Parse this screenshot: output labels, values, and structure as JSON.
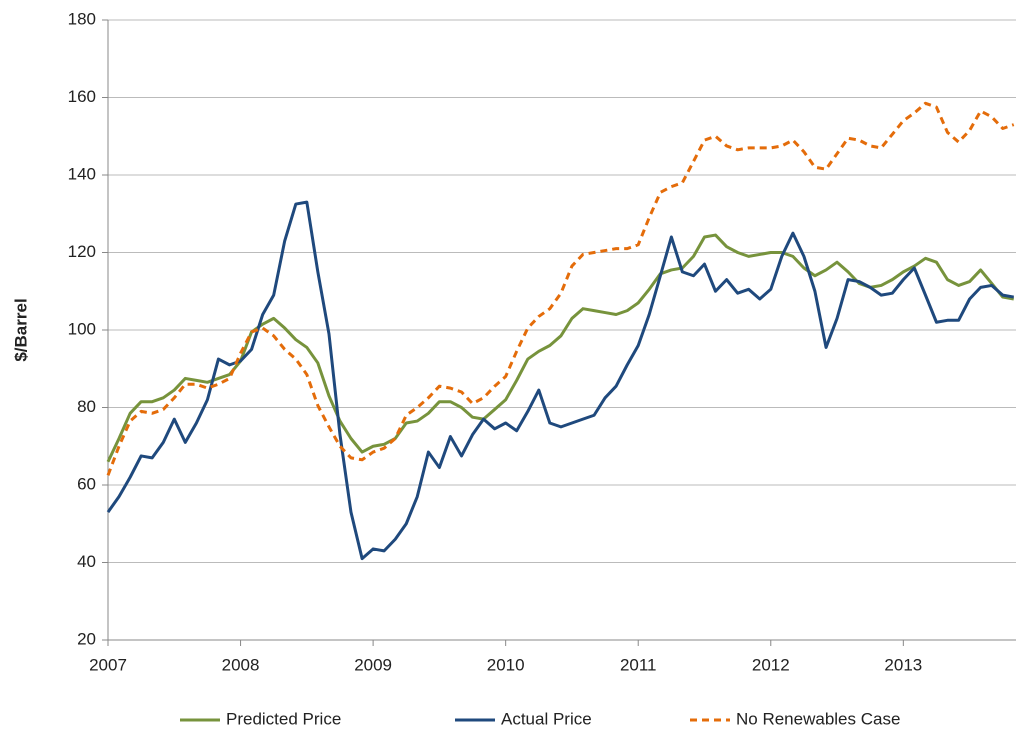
{
  "chart_data": {
    "type": "line",
    "y_label": "$/Barrel",
    "x": [
      2007.0,
      2007.083,
      2007.167,
      2007.25,
      2007.333,
      2007.417,
      2007.5,
      2007.583,
      2007.667,
      2007.75,
      2007.833,
      2007.917,
      2008.0,
      2008.083,
      2008.167,
      2008.25,
      2008.333,
      2008.417,
      2008.5,
      2008.583,
      2008.667,
      2008.75,
      2008.833,
      2008.917,
      2009.0,
      2009.083,
      2009.167,
      2009.25,
      2009.333,
      2009.417,
      2009.5,
      2009.583,
      2009.667,
      2009.75,
      2009.833,
      2009.917,
      2010.0,
      2010.083,
      2010.167,
      2010.25,
      2010.333,
      2010.417,
      2010.5,
      2010.583,
      2010.667,
      2010.75,
      2010.833,
      2010.917,
      2011.0,
      2011.083,
      2011.167,
      2011.25,
      2011.333,
      2011.417,
      2011.5,
      2011.583,
      2011.667,
      2011.75,
      2011.833,
      2011.917,
      2012.0,
      2012.083,
      2012.167,
      2012.25,
      2012.333,
      2012.417,
      2012.5,
      2012.583,
      2012.667,
      2012.75,
      2012.833,
      2012.917,
      2013.0,
      2013.083,
      2013.167,
      2013.25,
      2013.333,
      2013.417,
      2013.5,
      2013.583,
      2013.667,
      2013.75,
      2013.833
    ],
    "series": [
      {
        "name": "Predicted Price",
        "color": "#77933c",
        "dashed": false,
        "values": [
          66,
          72,
          78.5,
          81.5,
          81.5,
          82.5,
          84.5,
          87.5,
          87,
          86.5,
          87.5,
          88.5,
          92,
          99.5,
          101.5,
          103,
          100.5,
          97.5,
          95.5,
          91.5,
          83,
          76.5,
          72,
          68.5,
          70,
          70.5,
          72,
          76,
          76.5,
          78.5,
          81.5,
          81.5,
          80,
          77.5,
          77,
          79.5,
          82,
          87,
          92.5,
          94.5,
          96,
          98.5,
          103,
          105.5,
          105,
          104.5,
          104,
          105,
          107,
          110.5,
          114.5,
          115.5,
          116,
          119,
          124,
          124.5,
          121.5,
          120,
          119,
          119.5,
          120,
          120,
          119,
          116,
          114,
          115.5,
          117.5,
          115,
          112,
          111,
          111.5,
          113,
          115,
          116.5,
          118.5,
          117.5,
          113,
          111.5,
          112.5,
          115.5,
          112,
          108.5,
          108
        ]
      },
      {
        "name": "Actual Price",
        "color": "#1f497d",
        "dashed": false,
        "values": [
          53,
          57,
          62,
          67.5,
          67,
          71,
          77,
          71,
          76,
          82,
          92.5,
          91,
          92,
          95,
          104,
          109,
          123,
          132.5,
          133,
          115,
          99,
          73,
          53,
          41,
          43.5,
          43,
          46,
          50,
          57,
          68.5,
          64.5,
          72.5,
          67.5,
          73,
          77,
          74.5,
          76,
          74,
          79,
          84.5,
          76,
          75,
          76,
          77,
          78,
          82.5,
          85.5,
          91,
          96,
          104,
          114,
          124,
          115,
          114,
          117,
          110,
          113,
          109.5,
          110.5,
          108,
          110.5,
          119,
          125,
          119,
          110,
          95.5,
          103,
          113,
          112.5,
          111,
          109,
          109.5,
          113,
          116,
          109,
          102,
          102.5,
          102.5,
          108,
          111,
          111.5,
          109,
          108.5
        ]
      },
      {
        "name": "No Renewables Case",
        "color": "#e46c0a",
        "dashed": true,
        "values": [
          62.5,
          70,
          76.5,
          79,
          78.5,
          79.5,
          82.5,
          86,
          86,
          85,
          86,
          87.5,
          94,
          99.5,
          100.5,
          98.5,
          95,
          92.5,
          88.5,
          80.5,
          75,
          70,
          67,
          66.5,
          68.5,
          69.5,
          72,
          78,
          80,
          82.5,
          85.5,
          85,
          84,
          81,
          82.5,
          85.5,
          88,
          94.5,
          100.5,
          103.5,
          105.5,
          109.5,
          116.5,
          119.5,
          120,
          120.5,
          121,
          121,
          122,
          129,
          135.5,
          137,
          138,
          143.5,
          149,
          150,
          147.5,
          146.5,
          147,
          147,
          147,
          147.5,
          149,
          146,
          142,
          141.5,
          145.5,
          149.5,
          149,
          147.5,
          147,
          150.5,
          154,
          156,
          158.5,
          157.5,
          151,
          148.5,
          151.5,
          156.5,
          155,
          152,
          153
        ]
      }
    ],
    "xlim": [
      2007,
      2013.85
    ],
    "xticks": [
      2007,
      2008,
      2009,
      2010,
      2011,
      2012,
      2013
    ],
    "ylim": [
      20,
      180
    ],
    "yticks": [
      20,
      40,
      60,
      80,
      100,
      120,
      140,
      160,
      180
    ],
    "grid": true,
    "legend": "bottom"
  }
}
